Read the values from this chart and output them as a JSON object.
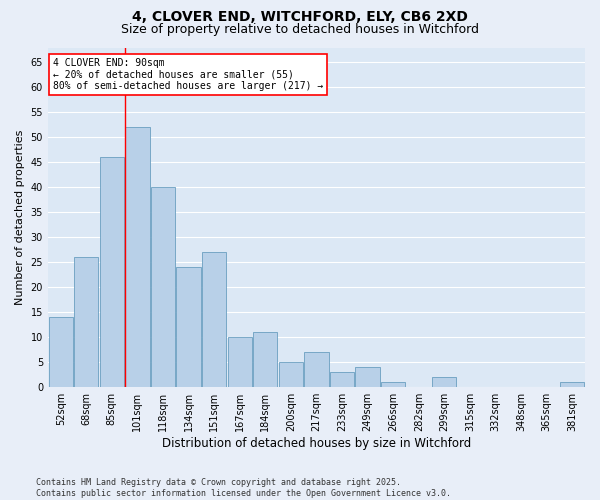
{
  "title": "4, CLOVER END, WITCHFORD, ELY, CB6 2XD",
  "subtitle": "Size of property relative to detached houses in Witchford",
  "xlabel": "Distribution of detached houses by size in Witchford",
  "ylabel": "Number of detached properties",
  "categories": [
    "52sqm",
    "68sqm",
    "85sqm",
    "101sqm",
    "118sqm",
    "134sqm",
    "151sqm",
    "167sqm",
    "184sqm",
    "200sqm",
    "217sqm",
    "233sqm",
    "249sqm",
    "266sqm",
    "282sqm",
    "299sqm",
    "315sqm",
    "332sqm",
    "348sqm",
    "365sqm",
    "381sqm"
  ],
  "values": [
    14,
    26,
    46,
    52,
    40,
    24,
    27,
    10,
    11,
    5,
    7,
    3,
    4,
    1,
    0,
    2,
    0,
    0,
    0,
    0,
    1
  ],
  "bar_color": "#b8d0e8",
  "bar_edge_color": "#6a9fc0",
  "vline_x": 2.5,
  "annotation_line1": "4 CLOVER END: 90sqm",
  "annotation_line2": "← 20% of detached houses are smaller (55)",
  "annotation_line3": "80% of semi-detached houses are larger (217) →",
  "ylim": [
    0,
    68
  ],
  "yticks": [
    0,
    5,
    10,
    15,
    20,
    25,
    30,
    35,
    40,
    45,
    50,
    55,
    60,
    65
  ],
  "background_color": "#dce8f5",
  "fig_background_color": "#e8eef8",
  "footer": "Contains HM Land Registry data © Crown copyright and database right 2025.\nContains public sector information licensed under the Open Government Licence v3.0.",
  "title_fontsize": 10,
  "subtitle_fontsize": 9,
  "xlabel_fontsize": 8.5,
  "ylabel_fontsize": 8,
  "tick_fontsize": 7,
  "footer_fontsize": 6,
  "annotation_fontsize": 7
}
